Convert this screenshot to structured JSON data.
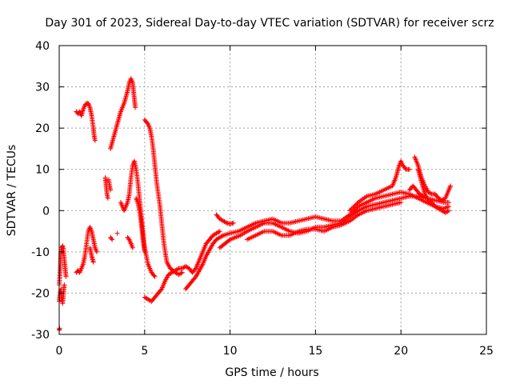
{
  "chart_data": {
    "type": "scatter",
    "title": "Day 301 of 2023, Sidereal Day-to-day VTEC variation (SDTVAR) for receiver scrz",
    "xlabel": "GPS time / hours",
    "ylabel": "SDTVAR / TECUs",
    "xlim": [
      0,
      25
    ],
    "ylim": [
      -30,
      40
    ],
    "xticks": [
      0,
      5,
      10,
      15,
      20,
      25
    ],
    "yticks": [
      -30,
      -20,
      -10,
      0,
      10,
      20,
      30,
      40
    ],
    "grid": true,
    "marker": "+",
    "series": [
      {
        "name": "SDTVAR",
        "color": "#ff0000",
        "tracks": [
          [
            [
              0.0,
              -29
            ],
            [
              0.02,
              -28.5
            ]
          ],
          [
            [
              0.0,
              -22
            ],
            [
              0.05,
              -20
            ],
            [
              0.1,
              -19
            ],
            [
              0.15,
              -21
            ],
            [
              0.2,
              -22.5
            ],
            [
              0.25,
              -20
            ],
            [
              0.3,
              -18
            ]
          ],
          [
            [
              0.0,
              -18
            ],
            [
              0.05,
              -15
            ],
            [
              0.08,
              -12
            ],
            [
              0.1,
              -10
            ],
            [
              0.15,
              -9
            ],
            [
              0.2,
              -8.5
            ],
            [
              0.25,
              -9.5
            ],
            [
              0.3,
              -12
            ],
            [
              0.35,
              -14
            ],
            [
              0.4,
              -16
            ]
          ],
          [
            [
              1.0,
              -15
            ],
            [
              1.1,
              -14.5
            ],
            [
              1.2,
              -15
            ],
            [
              1.3,
              -14
            ],
            [
              1.4,
              -13
            ],
            [
              1.5,
              -11
            ],
            [
              1.6,
              -8
            ],
            [
              1.7,
              -5
            ],
            [
              1.8,
              -4
            ],
            [
              1.9,
              -5
            ],
            [
              2.0,
              -7
            ],
            [
              2.1,
              -9
            ],
            [
              2.2,
              -10
            ]
          ],
          [
            [
              1.8,
              -9
            ],
            [
              1.9,
              -11
            ],
            [
              2.0,
              -12.5
            ]
          ],
          [
            [
              1.0,
              24
            ],
            [
              1.1,
              23.5
            ],
            [
              1.2,
              24
            ],
            [
              1.3,
              23
            ],
            [
              1.4,
              24.5
            ],
            [
              1.5,
              25.5
            ],
            [
              1.6,
              26
            ],
            [
              1.7,
              26
            ],
            [
              1.8,
              25
            ],
            [
              1.9,
              23
            ],
            [
              2.0,
              20
            ],
            [
              2.05,
              18
            ],
            [
              2.1,
              17
            ]
          ],
          [
            [
              2.7,
              8
            ],
            [
              2.75,
              6
            ],
            [
              2.8,
              4
            ],
            [
              2.85,
              3
            ]
          ],
          [
            [
              2.9,
              7.5
            ],
            [
              2.95,
              6
            ],
            [
              3.0,
              5
            ]
          ],
          [
            [
              3.0,
              -6.5
            ],
            [
              3.1,
              -7
            ]
          ],
          [
            [
              3.4,
              -5.5
            ]
          ],
          [
            [
              3.0,
              15
            ],
            [
              3.2,
              18
            ],
            [
              3.4,
              21
            ],
            [
              3.6,
              24
            ],
            [
              3.8,
              26
            ],
            [
              4.0,
              29
            ],
            [
              4.1,
              31
            ],
            [
              4.2,
              32
            ],
            [
              4.3,
              31
            ],
            [
              4.35,
              29
            ],
            [
              4.4,
              27
            ],
            [
              4.45,
              25
            ]
          ],
          [
            [
              3.6,
              2
            ],
            [
              3.7,
              1
            ],
            [
              3.8,
              0
            ],
            [
              3.9,
              1
            ],
            [
              4.0,
              2
            ],
            [
              4.1,
              4
            ],
            [
              4.2,
              8
            ],
            [
              4.3,
              11
            ],
            [
              4.4,
              12
            ],
            [
              4.5,
              10
            ],
            [
              4.6,
              7
            ],
            [
              4.7,
              3
            ],
            [
              4.8,
              -1
            ],
            [
              4.9,
              -5
            ],
            [
              5.0,
              -9
            ],
            [
              5.2,
              -13
            ],
            [
              5.4,
              -15
            ],
            [
              5.6,
              -16
            ]
          ],
          [
            [
              4.5,
              3
            ],
            [
              4.6,
              2
            ],
            [
              4.7,
              0
            ],
            [
              4.8,
              -3
            ],
            [
              4.9,
              -7
            ],
            [
              5.0,
              -10
            ]
          ],
          [
            [
              4.0,
              -6.5
            ],
            [
              4.1,
              -7
            ],
            [
              4.2,
              -8
            ],
            [
              4.3,
              -9
            ]
          ],
          [
            [
              5.0,
              22
            ],
            [
              5.1,
              21.5
            ],
            [
              5.2,
              21
            ],
            [
              5.3,
              20
            ],
            [
              5.4,
              18
            ],
            [
              5.5,
              15
            ],
            [
              5.6,
              11
            ],
            [
              5.7,
              7
            ],
            [
              5.8,
              4
            ],
            [
              5.9,
              1
            ],
            [
              6.0,
              -3
            ],
            [
              6.1,
              -7
            ],
            [
              6.2,
              -10
            ],
            [
              6.3,
              -12.5
            ],
            [
              6.5,
              -14
            ],
            [
              6.8,
              -15
            ],
            [
              7.0,
              -15.5
            ],
            [
              7.2,
              -15
            ]
          ],
          [
            [
              5.0,
              -21
            ],
            [
              5.2,
              -21.5
            ],
            [
              5.4,
              -22
            ],
            [
              5.6,
              -21
            ],
            [
              5.8,
              -20
            ],
            [
              6.0,
              -19
            ],
            [
              6.2,
              -17
            ],
            [
              6.4,
              -15.5
            ],
            [
              6.6,
              -15
            ],
            [
              6.8,
              -14.5
            ],
            [
              7.0,
              -14
            ],
            [
              7.2,
              -14
            ],
            [
              7.4,
              -13.5
            ],
            [
              7.6,
              -14
            ],
            [
              7.8,
              -15
            ],
            [
              8.0,
              -14
            ],
            [
              8.2,
              -12
            ],
            [
              8.4,
              -10
            ],
            [
              8.6,
              -8
            ],
            [
              8.8,
              -7
            ],
            [
              9.0,
              -6
            ],
            [
              9.2,
              -5.5
            ],
            [
              9.4,
              -5
            ]
          ],
          [
            [
              7.4,
              -19
            ],
            [
              7.6,
              -18
            ],
            [
              7.8,
              -17
            ],
            [
              8.0,
              -16
            ],
            [
              8.2,
              -14.5
            ],
            [
              8.4,
              -13
            ],
            [
              8.6,
              -11
            ],
            [
              8.8,
              -9.5
            ],
            [
              9.0,
              -8
            ],
            [
              9.2,
              -7
            ],
            [
              9.4,
              -6.5
            ],
            [
              9.6,
              -6
            ]
          ],
          [
            [
              9.2,
              -1
            ],
            [
              9.4,
              -2
            ],
            [
              9.6,
              -2.5
            ],
            [
              9.8,
              -3
            ],
            [
              10.0,
              -3.2
            ],
            [
              10.2,
              -3
            ]
          ],
          [
            [
              9.4,
              -9
            ],
            [
              9.7,
              -8
            ],
            [
              10.0,
              -7
            ],
            [
              10.3,
              -6.5
            ],
            [
              10.6,
              -6
            ],
            [
              11.0,
              -5
            ],
            [
              11.5,
              -4
            ],
            [
              12.0,
              -3
            ],
            [
              12.5,
              -3
            ],
            [
              13.0,
              -4
            ],
            [
              13.5,
              -5
            ],
            [
              14.0,
              -5.5
            ],
            [
              14.5,
              -5
            ],
            [
              15.0,
              -4
            ],
            [
              15.5,
              -4
            ],
            [
              16.0,
              -3.5
            ],
            [
              16.5,
              -3
            ],
            [
              17.0,
              -1.5
            ],
            [
              17.5,
              0
            ],
            [
              18.0,
              1
            ],
            [
              18.5,
              1.5
            ],
            [
              19.0,
              2
            ],
            [
              19.5,
              2.5
            ],
            [
              20.0,
              3
            ],
            [
              20.5,
              3.5
            ],
            [
              21.0,
              3.5
            ],
            [
              21.5,
              3
            ],
            [
              22.0,
              2.5
            ],
            [
              22.5,
              2
            ],
            [
              22.8,
              2
            ]
          ],
          [
            [
              9.6,
              -6
            ],
            [
              10.0,
              -5.5
            ],
            [
              10.5,
              -5
            ],
            [
              11.0,
              -4
            ],
            [
              11.5,
              -3
            ],
            [
              12.0,
              -2.5
            ],
            [
              12.5,
              -2
            ],
            [
              13.0,
              -3
            ],
            [
              13.5,
              -3
            ],
            [
              14.0,
              -2.5
            ],
            [
              14.5,
              -2
            ],
            [
              15.0,
              -1.5
            ],
            [
              15.5,
              -2
            ],
            [
              16.0,
              -2.5
            ],
            [
              16.5,
              -2.5
            ],
            [
              17.0,
              -1
            ],
            [
              17.5,
              1
            ],
            [
              18.0,
              2
            ],
            [
              18.5,
              3
            ],
            [
              19.0,
              3.5
            ],
            [
              19.5,
              4
            ],
            [
              20.0,
              4.5
            ],
            [
              20.5,
              4
            ],
            [
              21.0,
              3
            ],
            [
              21.5,
              2
            ],
            [
              22.0,
              1
            ],
            [
              22.5,
              0.5
            ],
            [
              22.8,
              1
            ]
          ],
          [
            [
              11.0,
              -7
            ],
            [
              11.5,
              -6
            ],
            [
              12.0,
              -5
            ],
            [
              12.5,
              -5
            ],
            [
              13.0,
              -6
            ],
            [
              13.5,
              -6
            ],
            [
              14.0,
              -5
            ],
            [
              14.5,
              -4.5
            ],
            [
              15.0,
              -4.5
            ],
            [
              15.5,
              -5
            ],
            [
              16.0,
              -4
            ],
            [
              16.5,
              -3.5
            ],
            [
              17.0,
              -2.5
            ],
            [
              17.5,
              -1
            ],
            [
              18.0,
              0
            ],
            [
              18.5,
              0.5
            ],
            [
              19.0,
              1
            ],
            [
              19.5,
              1.5
            ],
            [
              20.0,
              2
            ]
          ],
          [
            [
              17.0,
              0
            ],
            [
              17.5,
              2
            ],
            [
              18.0,
              3.5
            ],
            [
              18.5,
              4
            ],
            [
              19.0,
              5
            ],
            [
              19.5,
              6
            ],
            [
              19.7,
              8
            ],
            [
              19.9,
              11
            ],
            [
              20.0,
              12
            ],
            [
              20.1,
              11
            ],
            [
              20.3,
              10
            ],
            [
              20.5,
              10
            ]
          ],
          [
            [
              20.8,
              13
            ],
            [
              21.0,
              11
            ],
            [
              21.2,
              8
            ],
            [
              21.4,
              6
            ],
            [
              21.6,
              4.5
            ],
            [
              21.8,
              4
            ],
            [
              22.0,
              4
            ],
            [
              22.2,
              3
            ],
            [
              22.4,
              2.5
            ],
            [
              22.6,
              3
            ],
            [
              22.8,
              5
            ],
            [
              22.9,
              6
            ]
          ],
          [
            [
              21.0,
              10
            ],
            [
              21.2,
              7
            ],
            [
              21.4,
              4
            ],
            [
              21.6,
              2.5
            ],
            [
              21.8,
              2
            ],
            [
              22.0,
              1
            ],
            [
              22.2,
              0.5
            ],
            [
              22.4,
              0
            ],
            [
              22.6,
              -0.5
            ],
            [
              22.8,
              0
            ]
          ],
          [
            [
              20.5,
              5
            ],
            [
              20.7,
              6
            ],
            [
              20.9,
              5
            ],
            [
              21.1,
              4
            ],
            [
              21.3,
              3.5
            ]
          ]
        ]
      }
    ]
  }
}
